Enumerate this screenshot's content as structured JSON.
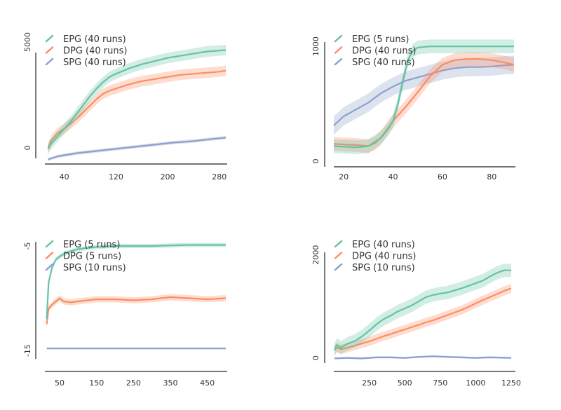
{
  "colors": {
    "EPG": "#66c2a5",
    "DPG": "#fc8d62",
    "SPG": "#8da0cb"
  },
  "chart_data": [
    {
      "type": "line",
      "xlim": [
        10,
        290
      ],
      "ylim": [
        -500,
        5000
      ],
      "xticks": [
        40,
        120,
        200,
        280
      ],
      "yticks": [
        0,
        5000
      ],
      "ytick_labels": [
        "0",
        "5000"
      ],
      "series": [
        {
          "name": "EPG",
          "legend": "EPG (40 runs)",
          "band": 250,
          "x": [
            15,
            20,
            30,
            40,
            50,
            60,
            70,
            80,
            90,
            100,
            110,
            120,
            140,
            160,
            180,
            200,
            220,
            240,
            260,
            280,
            290
          ],
          "y": [
            -50,
            200,
            550,
            900,
            1250,
            1650,
            2050,
            2450,
            2800,
            3100,
            3350,
            3500,
            3750,
            3950,
            4100,
            4250,
            4350,
            4450,
            4550,
            4600,
            4620
          ]
        },
        {
          "name": "DPG",
          "legend": "DPG (40 runs)",
          "band": 250,
          "x": [
            15,
            20,
            30,
            40,
            50,
            60,
            70,
            80,
            90,
            100,
            110,
            120,
            140,
            160,
            180,
            200,
            220,
            240,
            260,
            280,
            290
          ],
          "y": [
            0,
            350,
            700,
            900,
            1150,
            1400,
            1700,
            2000,
            2300,
            2550,
            2700,
            2800,
            3000,
            3150,
            3250,
            3350,
            3450,
            3500,
            3550,
            3600,
            3650
          ]
        },
        {
          "name": "SPG",
          "legend": "SPG (40 runs)",
          "band": 80,
          "x": [
            15,
            30,
            60,
            90,
            120,
            150,
            180,
            210,
            240,
            270,
            290
          ],
          "y": [
            -550,
            -400,
            -250,
            -150,
            -50,
            50,
            150,
            250,
            320,
            420,
            480
          ]
        }
      ]
    },
    {
      "type": "line",
      "xlim": [
        16,
        89
      ],
      "ylim": [
        -50,
        1050
      ],
      "xticks": [
        20,
        40,
        60,
        80
      ],
      "yticks": [
        0,
        1000
      ],
      "ytick_labels": [
        "0",
        "1000"
      ],
      "series": [
        {
          "name": "EPG",
          "legend": "EPG (5 runs)",
          "band": 60,
          "x": [
            16,
            25,
            30,
            35,
            38,
            40,
            42,
            44,
            46,
            48,
            50,
            55,
            60,
            70,
            80,
            89
          ],
          "y": [
            130,
            120,
            130,
            200,
            280,
            350,
            500,
            700,
            880,
            960,
            990,
            1000,
            1000,
            1000,
            1000,
            1000
          ]
        },
        {
          "name": "DPG",
          "legend": "DPG (40 runs)",
          "band": 60,
          "x": [
            16,
            20,
            25,
            30,
            33,
            36,
            40,
            45,
            50,
            55,
            60,
            65,
            70,
            75,
            80,
            85,
            89
          ],
          "y": [
            150,
            145,
            140,
            130,
            160,
            230,
            350,
            470,
            600,
            740,
            840,
            880,
            890,
            890,
            880,
            860,
            840
          ]
        },
        {
          "name": "SPG",
          "legend": "SPG (40 runs)",
          "band": 80,
          "x": [
            16,
            20,
            25,
            30,
            35,
            40,
            45,
            50,
            55,
            60,
            65,
            70,
            75,
            80,
            85,
            89
          ],
          "y": [
            310,
            390,
            450,
            510,
            590,
            650,
            700,
            730,
            760,
            790,
            810,
            820,
            820,
            825,
            835,
            840
          ]
        }
      ]
    },
    {
      "type": "line",
      "xlim": [
        10,
        500
      ],
      "ylim": [
        -15.8,
        -4.6
      ],
      "xticks": [
        50,
        150,
        250,
        350,
        450
      ],
      "yticks": [
        -5,
        -15
      ],
      "ytick_labels": [
        "-5",
        "-15"
      ],
      "series": [
        {
          "name": "EPG",
          "legend": "EPG (5 runs)",
          "band": 0.2,
          "x": [
            15,
            20,
            30,
            40,
            50,
            60,
            80,
            100,
            150,
            200,
            250,
            300,
            350,
            400,
            450,
            500
          ],
          "y": [
            -12.0,
            -8.5,
            -7.0,
            -6.3,
            -6.0,
            -5.8,
            -5.5,
            -5.3,
            -5.1,
            -5.0,
            -5.0,
            -5.0,
            -4.95,
            -4.9,
            -4.9,
            -4.9
          ]
        },
        {
          "name": "DPG",
          "legend": "DPG (5 runs)",
          "band": 0.3,
          "x": [
            15,
            20,
            30,
            40,
            50,
            60,
            80,
            100,
            150,
            200,
            250,
            300,
            350,
            400,
            450,
            500
          ],
          "y": [
            -12.5,
            -11.0,
            -10.6,
            -10.3,
            -10.0,
            -10.3,
            -10.4,
            -10.3,
            -10.1,
            -10.1,
            -10.2,
            -10.1,
            -9.9,
            -10.0,
            -10.1,
            -10.0
          ]
        },
        {
          "name": "SPG",
          "legend": "SPG (10 runs)",
          "band": 0,
          "x": [
            15,
            500
          ],
          "y": [
            -14.8,
            -14.8
          ]
        }
      ]
    },
    {
      "type": "line",
      "xlim": [
        0,
        1270
      ],
      "ylim": [
        -100,
        2050
      ],
      "xticks": [
        250,
        500,
        750,
        1000,
        1250
      ],
      "yticks": [
        0,
        2000
      ],
      "ytick_labels": [
        "0",
        "2000"
      ],
      "series": [
        {
          "name": "EPG",
          "legend": "EPG (40 runs)",
          "band": 130,
          "x": [
            5,
            20,
            50,
            100,
            150,
            200,
            250,
            300,
            350,
            400,
            450,
            500,
            550,
            600,
            650,
            700,
            750,
            800,
            850,
            900,
            950,
            1000,
            1050,
            1100,
            1150,
            1200,
            1250
          ],
          "y": [
            150,
            250,
            200,
            280,
            330,
            420,
            530,
            650,
            750,
            820,
            900,
            960,
            1020,
            1100,
            1180,
            1220,
            1250,
            1270,
            1310,
            1350,
            1400,
            1450,
            1500,
            1580,
            1650,
            1700,
            1700
          ]
        },
        {
          "name": "DPG",
          "legend": "DPG (40 runs)",
          "band": 90,
          "x": [
            5,
            20,
            50,
            100,
            150,
            200,
            250,
            300,
            350,
            400,
            450,
            500,
            550,
            600,
            650,
            700,
            750,
            800,
            850,
            900,
            950,
            1000,
            1050,
            1100,
            1150,
            1200,
            1250
          ],
          "y": [
            150,
            200,
            170,
            200,
            240,
            280,
            320,
            370,
            420,
            460,
            510,
            550,
            600,
            640,
            690,
            730,
            780,
            830,
            880,
            930,
            990,
            1060,
            1120,
            1180,
            1240,
            1300,
            1350
          ]
        },
        {
          "name": "SPG",
          "legend": "SPG (10 runs)",
          "band": 20,
          "x": [
            5,
            100,
            200,
            300,
            400,
            500,
            600,
            700,
            800,
            900,
            1000,
            1100,
            1250
          ],
          "y": [
            -10,
            0,
            -10,
            10,
            10,
            0,
            20,
            30,
            20,
            10,
            0,
            10,
            0
          ]
        }
      ]
    }
  ]
}
